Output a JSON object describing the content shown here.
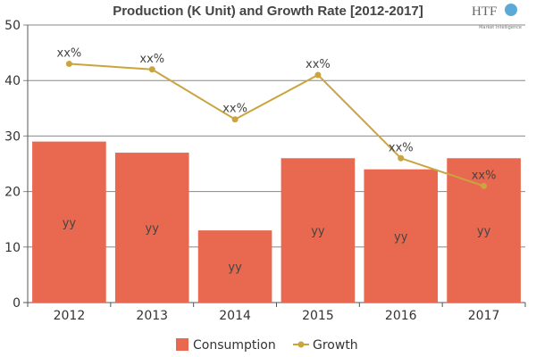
{
  "chart_data": {
    "type": "bar",
    "title": "Production (K Unit) and Growth Rate [2012-2017]",
    "logo": {
      "text": "HTF",
      "subtext": "Market Intelligence"
    },
    "categories": [
      "2012",
      "2013",
      "2014",
      "2015",
      "2016",
      "2017"
    ],
    "ylim": [
      0,
      50
    ],
    "yticks": [
      0,
      10,
      20,
      30,
      40,
      50
    ],
    "grid": true,
    "legend_position": "bottom",
    "series": [
      {
        "name": "Consumption",
        "type": "bar",
        "color": "#E8694F",
        "values": [
          29,
          27,
          13,
          26,
          24,
          26
        ],
        "data_labels": [
          "yy",
          "yy",
          "yy",
          "yy",
          "yy",
          "yy"
        ]
      },
      {
        "name": "Growth",
        "type": "line",
        "color": "#C9A43F",
        "values": [
          43,
          42,
          33,
          41,
          26,
          21
        ],
        "data_labels": [
          "xx%",
          "xx%",
          "xx%",
          "xx%",
          "xx%",
          "xx%"
        ]
      }
    ]
  }
}
